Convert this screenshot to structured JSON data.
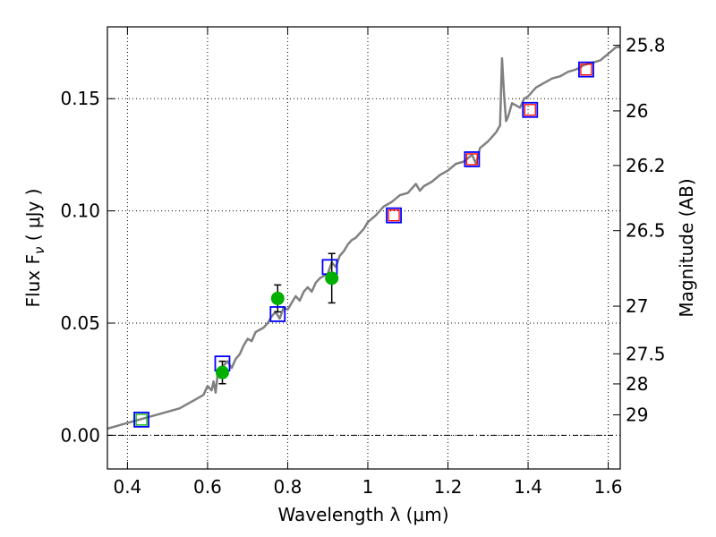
{
  "chart_data": {
    "type": "line",
    "xlabel": "Wavelength  λ (μm)",
    "ylabel_left": "Flux  F",
    "ylabel_left_sub": "ν",
    "ylabel_left_units": " ( μJy )",
    "ylabel_right": "Magnitude (AB)",
    "xlim": [
      0.35,
      1.63
    ],
    "ylim": [
      -0.015,
      0.182
    ],
    "grid": true,
    "x_ticks": [
      0.4,
      0.6,
      0.8,
      1.0,
      1.2,
      1.4,
      1.6
    ],
    "x_tick_labels": [
      "0.4",
      "0.6",
      "0.8",
      "1",
      "1.2",
      "1.4",
      "1.6"
    ],
    "y_ticks": [
      0.0,
      0.05,
      0.1,
      0.15
    ],
    "y_tick_labels": [
      "0.00",
      "0.05",
      "0.10",
      "0.15"
    ],
    "right_ticks": [
      {
        "label": "25.8",
        "mag": 25.8
      },
      {
        "label": "26",
        "mag": 26.0
      },
      {
        "label": "26.2",
        "mag": 26.2
      },
      {
        "label": "26.5",
        "mag": 26.5
      },
      {
        "label": "27",
        "mag": 27.0
      },
      {
        "label": "27.5",
        "mag": 27.5
      },
      {
        "label": "28",
        "mag": 28.0
      },
      {
        "label": "29",
        "mag": 29.0
      }
    ],
    "model_spectrum": {
      "color": "#808080",
      "x": [
        0.35,
        0.37,
        0.39,
        0.41,
        0.43,
        0.45,
        0.47,
        0.49,
        0.51,
        0.53,
        0.55,
        0.57,
        0.59,
        0.6,
        0.61,
        0.615,
        0.62,
        0.625,
        0.63,
        0.64,
        0.65,
        0.66,
        0.67,
        0.68,
        0.69,
        0.7,
        0.71,
        0.72,
        0.73,
        0.74,
        0.75,
        0.76,
        0.77,
        0.78,
        0.79,
        0.8,
        0.81,
        0.82,
        0.83,
        0.84,
        0.85,
        0.86,
        0.87,
        0.88,
        0.89,
        0.9,
        0.91,
        0.92,
        0.93,
        0.94,
        0.95,
        0.96,
        0.97,
        0.98,
        0.99,
        1.0,
        1.02,
        1.04,
        1.06,
        1.08,
        1.1,
        1.12,
        1.13,
        1.14,
        1.16,
        1.18,
        1.2,
        1.22,
        1.24,
        1.26,
        1.27,
        1.28,
        1.3,
        1.31,
        1.32,
        1.33,
        1.335,
        1.34,
        1.345,
        1.35,
        1.36,
        1.38,
        1.39,
        1.4,
        1.42,
        1.44,
        1.46,
        1.48,
        1.5,
        1.52,
        1.54,
        1.56,
        1.58,
        1.6,
        1.62,
        1.63
      ],
      "y": [
        0.003,
        0.004,
        0.005,
        0.006,
        0.007,
        0.008,
        0.009,
        0.01,
        0.011,
        0.012,
        0.014,
        0.016,
        0.018,
        0.022,
        0.02,
        0.024,
        0.019,
        0.027,
        0.03,
        0.031,
        0.033,
        0.03,
        0.034,
        0.036,
        0.04,
        0.043,
        0.042,
        0.046,
        0.047,
        0.048,
        0.05,
        0.053,
        0.055,
        0.052,
        0.057,
        0.056,
        0.059,
        0.062,
        0.06,
        0.064,
        0.066,
        0.064,
        0.068,
        0.07,
        0.071,
        0.072,
        0.077,
        0.075,
        0.08,
        0.082,
        0.085,
        0.087,
        0.088,
        0.09,
        0.092,
        0.095,
        0.098,
        0.102,
        0.104,
        0.107,
        0.108,
        0.112,
        0.109,
        0.111,
        0.113,
        0.116,
        0.118,
        0.121,
        0.122,
        0.125,
        0.121,
        0.128,
        0.131,
        0.133,
        0.135,
        0.138,
        0.168,
        0.152,
        0.14,
        0.142,
        0.148,
        0.146,
        0.15,
        0.151,
        0.155,
        0.157,
        0.159,
        0.16,
        0.162,
        0.163,
        0.165,
        0.166,
        0.167,
        0.17,
        0.173,
        0.173
      ]
    },
    "observed_points": {
      "color": "#00b000",
      "x": [
        0.637,
        0.775,
        0.91
      ],
      "y": [
        0.028,
        0.061,
        0.07
      ],
      "err": [
        0.005,
        0.006,
        0.011
      ]
    },
    "model_band_squares": {
      "color": "#0000ff",
      "x": [
        0.435,
        0.637,
        0.775,
        0.905,
        1.065,
        1.26,
        1.405,
        1.545
      ],
      "y": [
        0.007,
        0.032,
        0.054,
        0.075,
        0.098,
        0.123,
        0.145,
        0.163
      ]
    },
    "nir_squares": {
      "color": "#ff0000",
      "x": [
        1.065,
        1.26,
        1.405,
        1.545
      ],
      "y": [
        0.098,
        0.123,
        0.145,
        0.163
      ]
    },
    "optical_small_square": {
      "color": "#00b000",
      "x": [
        0.435
      ],
      "y": [
        0.007
      ]
    }
  }
}
